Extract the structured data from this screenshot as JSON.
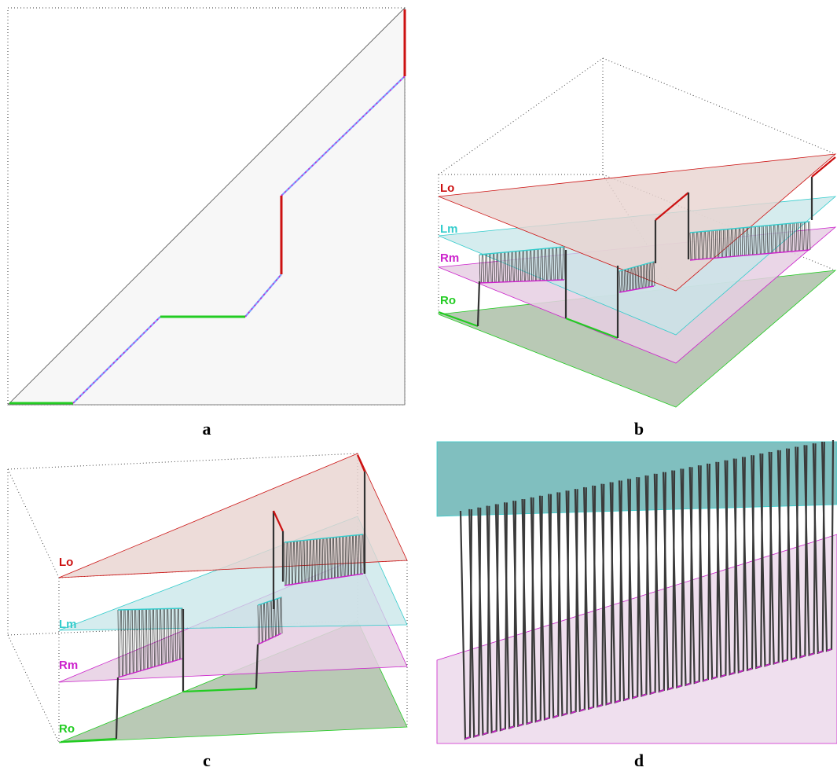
{
  "panels": {
    "a": {
      "caption": "a"
    },
    "b": {
      "caption": "b",
      "labels": {
        "lo": "Lo",
        "lm": "Lm",
        "rm": "Rm",
        "ro": "Ro"
      }
    },
    "c": {
      "caption": "c",
      "labels": {
        "lo": "Lo",
        "lm": "Lm",
        "rm": "Rm",
        "ro": "Ro"
      }
    },
    "d": {
      "caption": "d"
    }
  },
  "colors": {
    "lo": "#cc1111",
    "lm": "#33cccc",
    "rm": "#cc22cc",
    "ro": "#22cc22",
    "path": "#333333",
    "dots": "#333333"
  }
}
